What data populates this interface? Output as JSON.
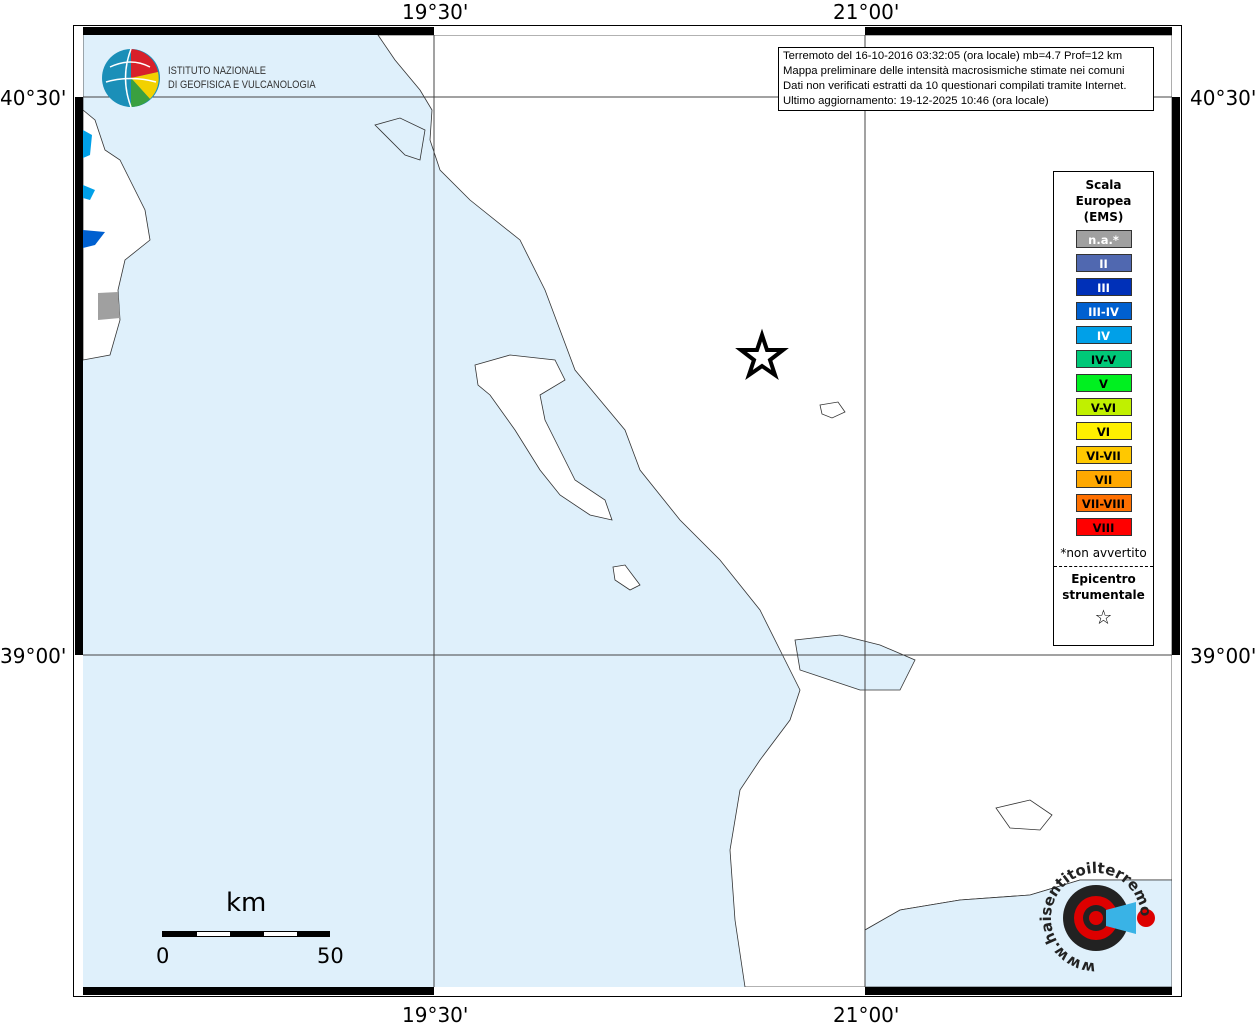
{
  "map": {
    "lon_ticks": [
      "19°30'",
      "21°00'"
    ],
    "lat_ticks": [
      "40°30'",
      "39°00'"
    ],
    "sea_color": "#dff0fb",
    "epicenter_icon": "star-icon"
  },
  "info": {
    "lines": [
      "Terremoto del 16-10-2016 03:32:05 (ora locale) mb=4.7 Prof=12 km",
      "Mappa preliminare delle intensità macrosismiche stimate nei comuni",
      "Dati non verificati estratti da 10 questionari compilati tramite Internet.",
      "Ultimo aggiornamento: 19-12-2025 10:46 (ora locale)"
    ]
  },
  "logo": {
    "line1": "ISTITUTO NAZIONALE",
    "line2": "DI GEOFISICA E VULCANOLOGIA"
  },
  "legend": {
    "title": [
      "Scala",
      "Europea",
      "(EMS)"
    ],
    "items": [
      {
        "label": "n.a.*",
        "color": "#a0a0a0",
        "text": "#fff"
      },
      {
        "label": "II",
        "color": "#5068b0",
        "text": "#fff"
      },
      {
        "label": "III",
        "color": "#0030b8",
        "text": "#fff"
      },
      {
        "label": "III-IV",
        "color": "#0060d0",
        "text": "#fff"
      },
      {
        "label": "IV",
        "color": "#00a0e8",
        "text": "#fff"
      },
      {
        "label": "IV-V",
        "color": "#00c878",
        "text": "#000"
      },
      {
        "label": "V",
        "color": "#00f020",
        "text": "#000"
      },
      {
        "label": "V-VI",
        "color": "#c0f000",
        "text": "#000"
      },
      {
        "label": "VI",
        "color": "#fff000",
        "text": "#000"
      },
      {
        "label": "VI-VII",
        "color": "#ffc800",
        "text": "#000"
      },
      {
        "label": "VII",
        "color": "#ffa800",
        "text": "#000"
      },
      {
        "label": "VII-VIII",
        "color": "#ff7000",
        "text": "#000"
      },
      {
        "label": "VIII",
        "color": "#ff0000",
        "text": "#000"
      }
    ],
    "note": "*non avvertito",
    "epicenter": [
      "Epicentro",
      "strumentale"
    ]
  },
  "scalebar": {
    "unit": "km",
    "min": "0",
    "max": "50"
  },
  "watermark": "www.haisentitoilterremoto.it"
}
